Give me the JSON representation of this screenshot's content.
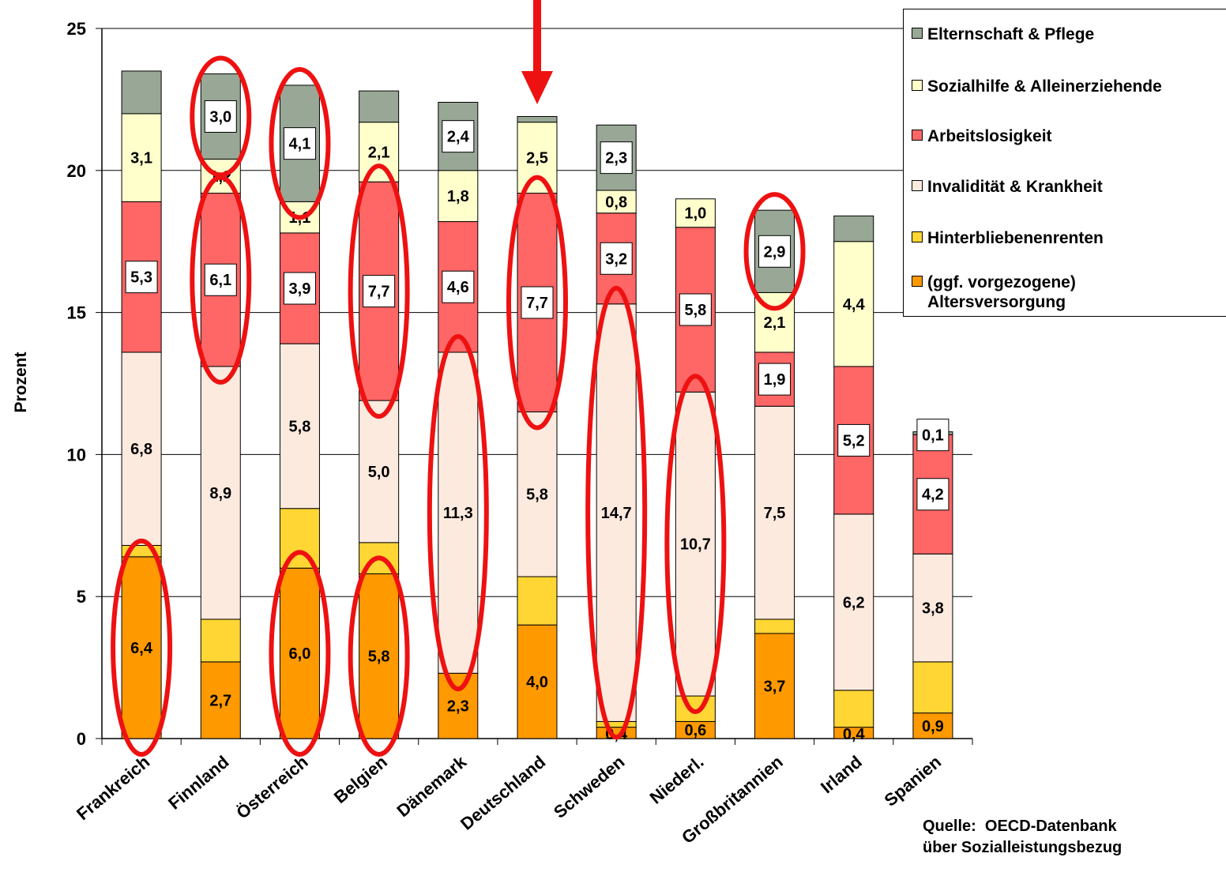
{
  "chart_data": {
    "type": "bar",
    "stacked": true,
    "ylabel": "Prozent",
    "ylim": [
      0,
      25
    ],
    "yticks": [
      0,
      5,
      10,
      15,
      20,
      25
    ],
    "grid": true,
    "legend_position": "top-right",
    "categories": [
      "Frankreich",
      "Finnland",
      "Österreich",
      "Belgien",
      "Dänemark",
      "Deutschland",
      "Schweden",
      "Niederl.",
      "Großbritannien",
      "Irland",
      "Spanien"
    ],
    "series": [
      {
        "name": "(ggf. vorgezogene) Altersversorgung",
        "color": "#FF9900",
        "values": [
          6.4,
          2.7,
          6.0,
          5.8,
          2.3,
          4.0,
          0.4,
          0.6,
          3.7,
          0.4,
          0.9
        ],
        "labels": [
          "6,4",
          "2,7",
          "6,0",
          "5,8",
          "2,3",
          "4,0",
          "0,4",
          "0,6",
          "3,7",
          "0,4",
          "0,9"
        ]
      },
      {
        "name": "Hinterbliebenenrenten",
        "color": "#FFD633",
        "values": [
          0.4,
          1.5,
          2.1,
          1.1,
          0.0,
          1.7,
          0.2,
          0.9,
          0.5,
          1.3,
          1.8
        ],
        "labels": [
          "",
          "",
          "",
          "",
          "",
          "",
          "",
          "",
          "",
          "",
          ""
        ]
      },
      {
        "name": "Invalidität & Krankheit",
        "color": "#FDEADF",
        "values": [
          6.8,
          8.9,
          5.8,
          5.0,
          11.3,
          5.8,
          14.7,
          10.7,
          7.5,
          6.2,
          3.8
        ],
        "labels": [
          "6,8",
          "8,9",
          "5,8",
          "5,0",
          "11,3",
          "5,8",
          "14,7",
          "10,7",
          "7,5",
          "6,2",
          "3,8"
        ]
      },
      {
        "name": "Arbeitslosigkeit",
        "color": "#FF6666",
        "values": [
          5.3,
          6.1,
          3.9,
          7.7,
          4.6,
          7.7,
          3.2,
          5.8,
          1.9,
          5.2,
          4.2
        ],
        "labels": [
          "5,3",
          "6,1",
          "3,9",
          "7,7",
          "4,6",
          "7,7",
          "3,2",
          "5,8",
          "1,9",
          "5,2",
          "4,2"
        ]
      },
      {
        "name": "Sozialhilfe & Alleinerziehende",
        "color": "#FFFFCC",
        "values": [
          3.1,
          1.2,
          1.1,
          2.1,
          1.8,
          2.5,
          0.8,
          1.0,
          2.1,
          4.4,
          0.0
        ],
        "labels": [
          "3,1",
          "1,2",
          "1,1",
          "2,1",
          "1,8",
          "2,5",
          "0,8",
          "1,0",
          "2,1",
          "4,4",
          ""
        ]
      },
      {
        "name": "Elternschaft & Pflege",
        "color": "#99A896",
        "values": [
          1.5,
          3.0,
          4.1,
          1.1,
          2.4,
          0.2,
          2.3,
          0.0,
          2.9,
          0.9,
          0.1
        ],
        "labels": [
          "",
          "3,0",
          "4,1",
          "",
          "2,4",
          "",
          "2,3",
          "",
          "2,9",
          "",
          "0,1"
        ]
      }
    ],
    "annotations": {
      "arrow_over_category": "Deutschland",
      "highlight_color": "#EE1111",
      "highlighted_segments": [
        [
          "Frankreich",
          "(ggf. vorgezogene) Altersversorgung"
        ],
        [
          "Finnland",
          "Elternschaft & Pflege"
        ],
        [
          "Finnland",
          "Arbeitslosigkeit"
        ],
        [
          "Österreich",
          "Elternschaft & Pflege"
        ],
        [
          "Österreich",
          "(ggf. vorgezogene) Altersversorgung"
        ],
        [
          "Belgien",
          "Arbeitslosigkeit"
        ],
        [
          "Belgien",
          "(ggf. vorgezogene) Altersversorgung"
        ],
        [
          "Dänemark",
          "Invalidität & Krankheit"
        ],
        [
          "Deutschland",
          "Arbeitslosigkeit"
        ],
        [
          "Schweden",
          "Invalidität & Krankheit"
        ],
        [
          "Niederl.",
          "Invalidität & Krankheit"
        ],
        [
          "Großbritannien",
          "Elternschaft & Pflege"
        ]
      ]
    }
  },
  "legend": {
    "items": [
      {
        "label": "Elternschaft & Pflege",
        "color": "#99A896"
      },
      {
        "label": "Sozialhilfe & Alleinerziehende",
        "color": "#FFFFCC"
      },
      {
        "label": "Arbeitslosigkeit",
        "color": "#FF6666"
      },
      {
        "label": "Invalidität & Krankheit",
        "color": "#FDEADF"
      },
      {
        "label": "Hinterbliebenenrenten",
        "color": "#FFD633"
      },
      {
        "label": "(ggf. vorgezogene) Altersversorgung",
        "color": "#FF9900"
      }
    ]
  },
  "source": {
    "line1": "Quelle:  OECD-Datenbank",
    "line2": "über Sozialleistungsbezug"
  }
}
